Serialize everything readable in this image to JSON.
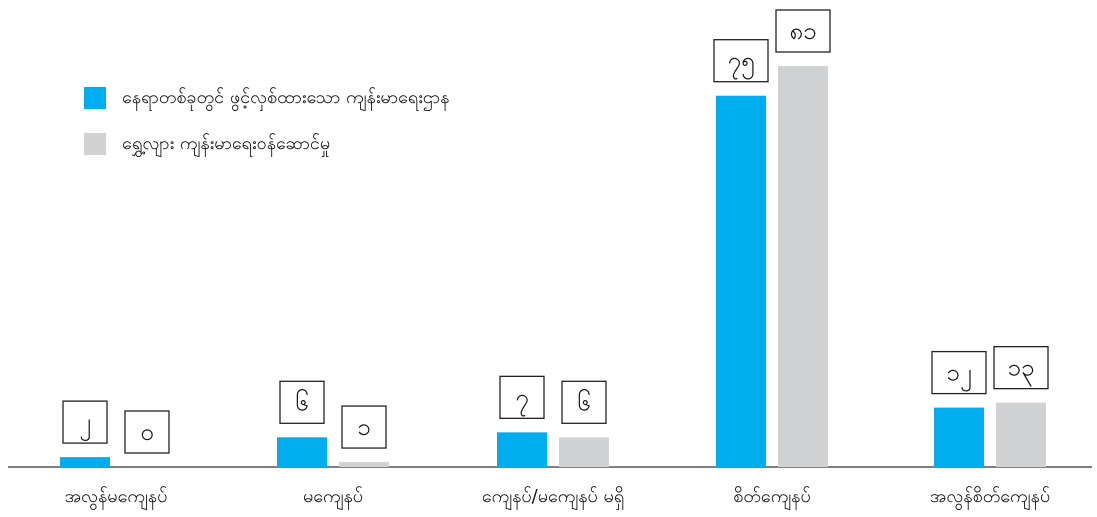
{
  "chart_data": {
    "type": "bar",
    "categories": [
      "အလွန်မကျေနပ်",
      "မကျေနပ်",
      "ကျေနပ်/မကျေနပ် မရှိ",
      "စိတ်ကျေနပ်",
      "အလွန်စိတ်ကျေနပ်"
    ],
    "series": [
      {
        "name": "နေရာတစ်ခုတွင် ဖွင့်လှစ်ထားသော ကျန်းမာရေးဌာန",
        "color": "#00AEEF",
        "values": [
          2,
          6,
          7,
          75,
          12
        ],
        "labels": [
          "၂",
          "၆",
          "၇",
          "၇၅",
          "၁၂"
        ]
      },
      {
        "name": "ရွှေ့လျား ကျန်းမာရေးဝန်ဆောင်မှု",
        "color": "#D1D2D4",
        "values": [
          0,
          1,
          6,
          81,
          13
        ],
        "labels": [
          "၀",
          "၁",
          "၆",
          "၈၁",
          "၁၃"
        ]
      }
    ],
    "ylim": [
      0,
      81
    ],
    "grid": false,
    "legend_position": "top-left",
    "title": "",
    "xlabel": "",
    "ylabel": ""
  }
}
